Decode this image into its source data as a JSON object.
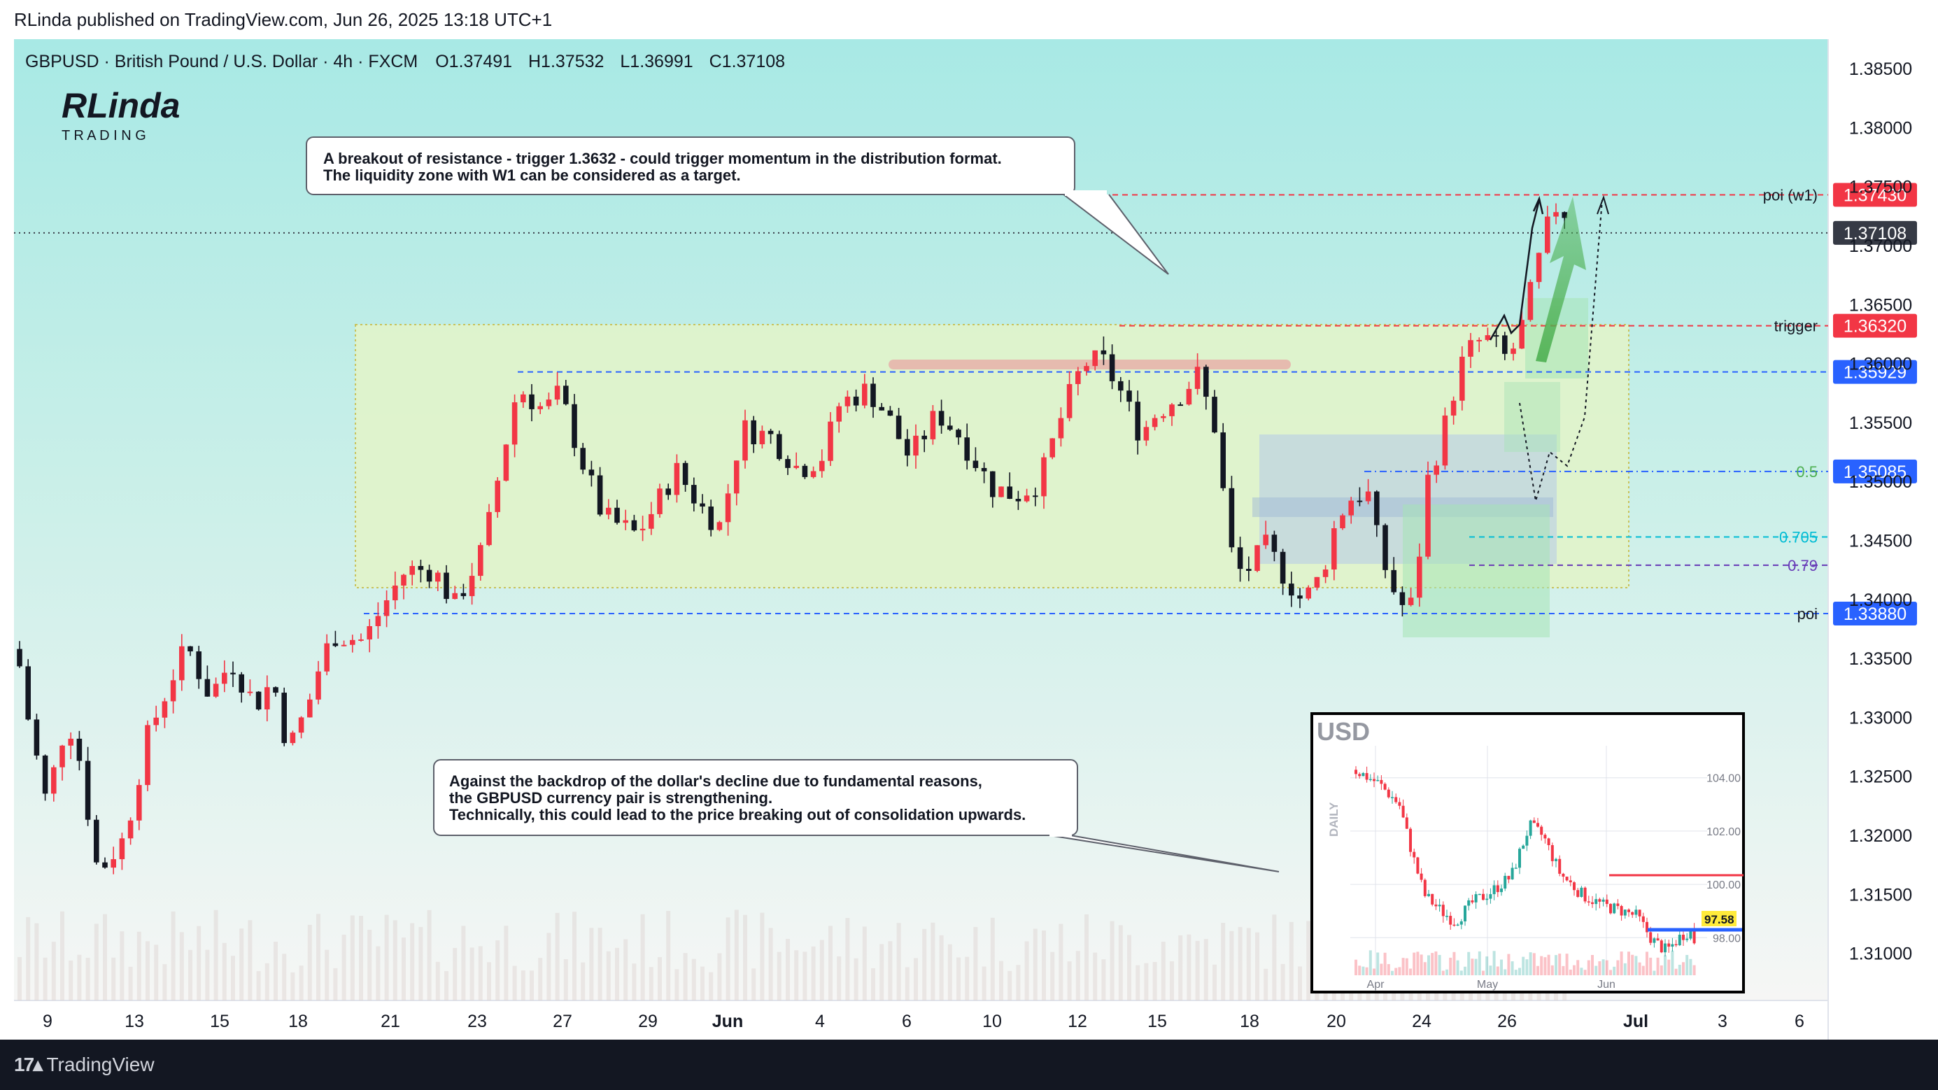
{
  "topbar": {
    "published": "RLinda published on TradingView.com, Jun 26, 2025 13:18 UTC+1"
  },
  "header": {
    "symbol": "GBPUSD · British Pound / U.S. Dollar · 4h · FXCM",
    "open": "O1.37491",
    "high": "H1.37532",
    "low": "L1.36991",
    "close": "C1.37108"
  },
  "logo": {
    "name": "RLinda",
    "sub": "T R A D I N G"
  },
  "annotations": {
    "top": [
      "A breakout of resistance - trigger 1.3632 - could trigger momentum in the distribution format.",
      "The liquidity zone with W1 can be considered as a target."
    ],
    "bottom": [
      "Against the backdrop of the dollar's decline due to fundamental reasons,",
      "the GBPUSD currency pair is strengthening.",
      "Technically, this could lead to the price breaking out of consolidation upwards."
    ]
  },
  "footer": {
    "brand": "TradingView"
  },
  "colors": {
    "up": "#f23645",
    "down": "#131722",
    "accent_red": "#f23645",
    "accent_blue": "#2962ff",
    "current": "#363a45",
    "zone": "#e0f2c4",
    "bg_top": "#a9e8e4",
    "bg_bottom": "#f4f4f4"
  },
  "chart_data": {
    "type": "candlestick",
    "title": "GBPUSD · British Pound / U.S. Dollar · 4h · FXCM",
    "ylim": [
      1.306,
      1.3875
    ],
    "y_ticks": [
      "1.38500",
      "1.38000",
      "1.37500",
      "1.37000",
      "1.36500",
      "1.36000",
      "1.35500",
      "1.35000",
      "1.34500",
      "1.34000",
      "1.33500",
      "1.33000",
      "1.32500",
      "1.32000",
      "1.31500",
      "1.31000"
    ],
    "x_ticks": [
      "9",
      "13",
      "15",
      "18",
      "21",
      "23",
      "27",
      "29",
      "Jun",
      "4",
      "6",
      "10",
      "12",
      "15",
      "18",
      "20",
      "24",
      "26",
      "Jul",
      "3",
      "6"
    ],
    "levels": [
      {
        "label": "poi (w1)",
        "value": "1.37430",
        "price": 1.3743,
        "color": "#f23645"
      },
      {
        "label": "",
        "value": "1.37108",
        "price": 1.37108,
        "color": "#363a45"
      },
      {
        "label": "trigger",
        "value": "1.36320",
        "price": 1.3632,
        "color": "#f23645"
      },
      {
        "label": "",
        "value": "1.35929",
        "price": 1.35929,
        "color": "#2962ff"
      },
      {
        "label": "0.5",
        "value": "1.35085",
        "price": 1.35085,
        "color": "#2962ff"
      },
      {
        "label": "0.705",
        "value": "",
        "price": 1.3453,
        "color": "#00bcd4"
      },
      {
        "label": "0.79",
        "value": "",
        "price": 1.3429,
        "color": "#673ab7"
      },
      {
        "label": "poi",
        "value": "1.33880",
        "price": 1.3388,
        "color": "#2962ff"
      }
    ],
    "inset": {
      "title": "USD",
      "side_label": "DAILY",
      "x_ticks": [
        "Apr",
        "May",
        "Jun"
      ],
      "y_ticks": [
        "104.00",
        "102.00",
        "100.00",
        "98.00"
      ],
      "last": "97.58",
      "ylim": [
        96.8,
        105.2
      ]
    }
  }
}
